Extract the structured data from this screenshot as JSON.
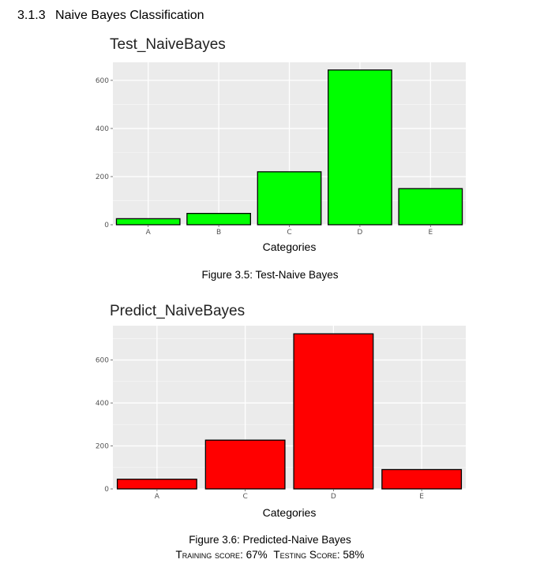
{
  "section": {
    "number": "3.1.3",
    "title": "Naive Bayes Classification"
  },
  "chart_data": [
    {
      "type": "bar",
      "title": "Test_NaiveBayes",
      "xlabel": "Categories",
      "ylabel": "",
      "categories": [
        "A",
        "B",
        "C",
        "D",
        "E"
      ],
      "values": [
        25,
        47,
        220,
        643,
        150
      ],
      "yticks": [
        0,
        200,
        400,
        600
      ],
      "ylim": [
        0,
        675
      ],
      "fill": "#00ff00",
      "stroke": "#000000",
      "panel_bg": "#ebebeb",
      "grid": true,
      "caption": "Figure 3.5: Test-Naive Bayes"
    },
    {
      "type": "bar",
      "title": "Predict_NaiveBayes",
      "xlabel": "Categories",
      "ylabel": "",
      "categories": [
        "A",
        "C",
        "D",
        "E"
      ],
      "values": [
        45,
        227,
        722,
        90
      ],
      "yticks": [
        0,
        200,
        400,
        600
      ],
      "ylim": [
        0,
        760
      ],
      "fill": "#ff0000",
      "stroke": "#000000",
      "panel_bg": "#ebebeb",
      "grid": true,
      "caption": "Figure 3.6: Predicted-Naive Bayes"
    }
  ],
  "scores": {
    "training_label": "Training score",
    "training_value": "67%",
    "testing_label": "Testing Score",
    "testing_value": "58%"
  }
}
